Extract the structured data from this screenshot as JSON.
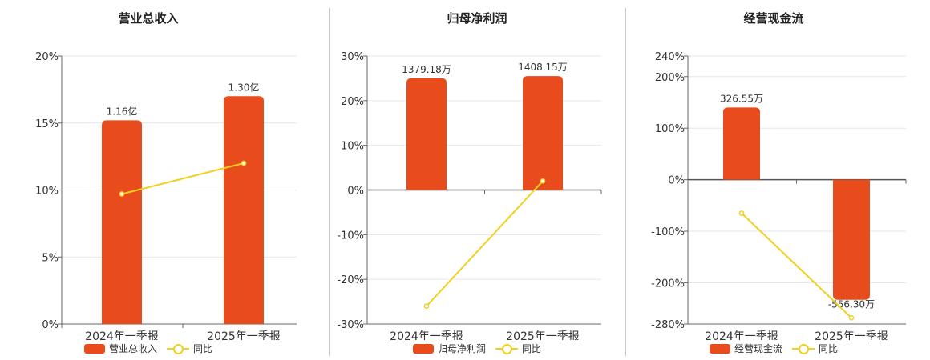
{
  "colors": {
    "bar": "#e84b1c",
    "line": "#f2d01f",
    "grid": "#e3e6ef",
    "axis": "#666666"
  },
  "chart_data": [
    {
      "type": "bar",
      "title": "营业总收入",
      "categories": [
        "2024年一季报",
        "2025年一季报"
      ],
      "bar_values_pct": [
        15.2,
        17.0
      ],
      "bar_labels": [
        "1.16亿",
        "1.30亿"
      ],
      "line_values_pct": [
        9.7,
        12.0
      ],
      "yticks": [
        "20%",
        "15%",
        "10%",
        "5%",
        "0%"
      ],
      "ylim": [
        0,
        20
      ],
      "legend": [
        "营业总收入",
        "同比"
      ]
    },
    {
      "type": "bar",
      "title": "归母净利润",
      "categories": [
        "2024年一季报",
        "2025年一季报"
      ],
      "bar_values_pct": [
        25.0,
        25.5
      ],
      "bar_labels": [
        "1379.18万",
        "1408.15万"
      ],
      "line_values_pct": [
        -26.0,
        2.0
      ],
      "yticks": [
        "30%",
        "20%",
        "10%",
        "0%",
        "-10%",
        "-20%",
        "-30%"
      ],
      "ylim": [
        -30,
        30
      ],
      "legend": [
        "归母净利润",
        "同比"
      ]
    },
    {
      "type": "bar",
      "title": "经营现金流",
      "categories": [
        "2024年一季报",
        "2025年一季报"
      ],
      "bar_values_pct": [
        140,
        -233
      ],
      "bar_labels": [
        "326.55万",
        "-556.30万"
      ],
      "line_values_pct": [
        -65,
        -268
      ],
      "yticks": [
        "240%",
        "200%",
        "100%",
        "0%",
        "-100%",
        "-200%",
        "-280%"
      ],
      "ylim": [
        -280,
        240
      ],
      "legend": [
        "经营现金流",
        "同比"
      ]
    }
  ]
}
